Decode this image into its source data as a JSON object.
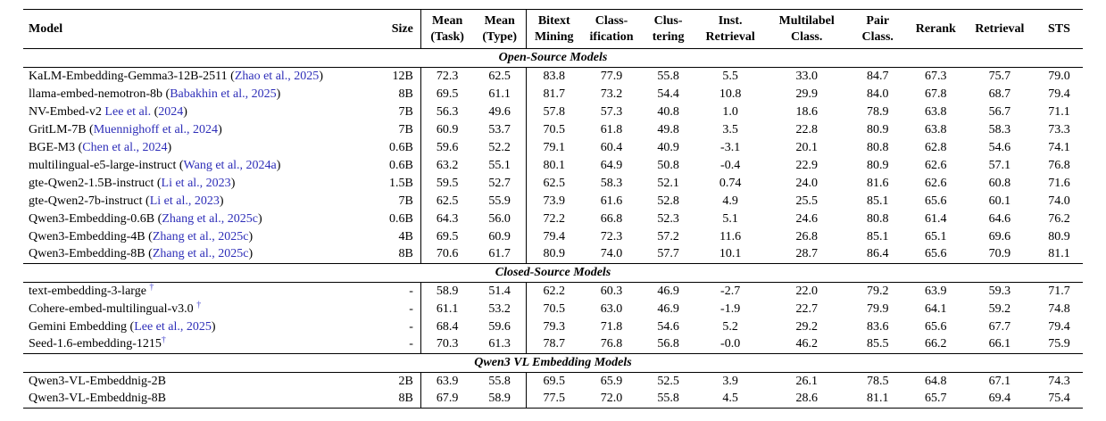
{
  "meta": {
    "citation_color": "#2e2eb8",
    "dagger_color": "#4444cc",
    "text_color": "#000000"
  },
  "table": {
    "columns": [
      {
        "key": "model",
        "lines": [
          "Model"
        ],
        "align": "left",
        "sep": false
      },
      {
        "key": "size",
        "lines": [
          "Size"
        ],
        "align": "right",
        "sep": true
      },
      {
        "key": "mean_task",
        "lines": [
          "Mean",
          "(Task)"
        ],
        "align": "center",
        "sep": false
      },
      {
        "key": "mean_type",
        "lines": [
          "Mean",
          "(Type)"
        ],
        "align": "center",
        "sep": true
      },
      {
        "key": "bitext_mining",
        "lines": [
          "Bitext",
          "Mining"
        ],
        "align": "center",
        "sep": false
      },
      {
        "key": "classification",
        "lines": [
          "Class-",
          "ification"
        ],
        "align": "center",
        "sep": false
      },
      {
        "key": "clustering",
        "lines": [
          "Clus-",
          "tering"
        ],
        "align": "center",
        "sep": false
      },
      {
        "key": "inst_retrieval",
        "lines": [
          "Inst.",
          "Retrieval"
        ],
        "align": "center",
        "sep": false
      },
      {
        "key": "multilabel",
        "lines": [
          "Multilabel",
          "Class."
        ],
        "align": "center",
        "sep": false
      },
      {
        "key": "pair_class",
        "lines": [
          "Pair",
          "Class."
        ],
        "align": "center",
        "sep": false
      },
      {
        "key": "rerank",
        "lines": [
          "Rerank"
        ],
        "align": "center",
        "sep": false
      },
      {
        "key": "retrieval",
        "lines": [
          "Retrieval"
        ],
        "align": "center",
        "sep": false
      },
      {
        "key": "sts",
        "lines": [
          "STS"
        ],
        "align": "center",
        "sep": false
      }
    ],
    "sections": [
      {
        "title": "Open-Source Models",
        "rows": [
          {
            "model": [
              {
                "t": "KaLM-Embedding-Gemma3-12B-2511 (",
                "s": "plain"
              },
              {
                "t": "Zhao et al., 2025",
                "s": "cite"
              },
              {
                "t": ")",
                "s": "plain"
              }
            ],
            "size": "12B",
            "scores": [
              "72.3",
              "62.5",
              "83.8",
              "77.9",
              "55.8",
              "5.5",
              "33.0",
              "84.7",
              "67.3",
              "75.7",
              "79.0"
            ]
          },
          {
            "model": [
              {
                "t": "llama-embed-nemotron-8b (",
                "s": "plain"
              },
              {
                "t": "Babakhin et al., 2025",
                "s": "cite"
              },
              {
                "t": ")",
                "s": "plain"
              }
            ],
            "size": "8B",
            "scores": [
              "69.5",
              "61.1",
              "81.7",
              "73.2",
              "54.4",
              "10.8",
              "29.9",
              "84.0",
              "67.8",
              "68.7",
              "79.4"
            ]
          },
          {
            "model": [
              {
                "t": "NV-Embed-v2 ",
                "s": "plain"
              },
              {
                "t": "Lee et al.",
                "s": "cite"
              },
              {
                "t": " (",
                "s": "plain"
              },
              {
                "t": "2024",
                "s": "cite"
              },
              {
                "t": ")",
                "s": "plain"
              }
            ],
            "size": "7B",
            "scores": [
              "56.3",
              "49.6",
              "57.8",
              "57.3",
              "40.8",
              "1.0",
              "18.6",
              "78.9",
              "63.8",
              "56.7",
              "71.1"
            ]
          },
          {
            "model": [
              {
                "t": "GritLM-7B (",
                "s": "plain"
              },
              {
                "t": "Muennighoff et al., 2024",
                "s": "cite"
              },
              {
                "t": ")",
                "s": "plain"
              }
            ],
            "size": "7B",
            "scores": [
              "60.9",
              "53.7",
              "70.5",
              "61.8",
              "49.8",
              "3.5",
              "22.8",
              "80.9",
              "63.8",
              "58.3",
              "73.3"
            ]
          },
          {
            "model": [
              {
                "t": "BGE-M3 (",
                "s": "plain"
              },
              {
                "t": "Chen et al., 2024",
                "s": "cite"
              },
              {
                "t": ")",
                "s": "plain"
              }
            ],
            "size": "0.6B",
            "scores": [
              "59.6",
              "52.2",
              "79.1",
              "60.4",
              "40.9",
              "-3.1",
              "20.1",
              "80.8",
              "62.8",
              "54.6",
              "74.1"
            ]
          },
          {
            "model": [
              {
                "t": "multilingual-e5-large-instruct (",
                "s": "plain"
              },
              {
                "t": "Wang et al., 2024a",
                "s": "cite"
              },
              {
                "t": ")",
                "s": "plain"
              }
            ],
            "size": "0.6B",
            "scores": [
              "63.2",
              "55.1",
              "80.1",
              "64.9",
              "50.8",
              "-0.4",
              "22.9",
              "80.9",
              "62.6",
              "57.1",
              "76.8"
            ]
          },
          {
            "model": [
              {
                "t": "gte-Qwen2-1.5B-instruct (",
                "s": "plain"
              },
              {
                "t": "Li et al., 2023",
                "s": "cite"
              },
              {
                "t": ")",
                "s": "plain"
              }
            ],
            "size": "1.5B",
            "scores": [
              "59.5",
              "52.7",
              "62.5",
              "58.3",
              "52.1",
              "0.74",
              "24.0",
              "81.6",
              "62.6",
              "60.8",
              "71.6"
            ]
          },
          {
            "model": [
              {
                "t": "gte-Qwen2-7b-instruct (",
                "s": "plain"
              },
              {
                "t": "Li et al., 2023",
                "s": "cite"
              },
              {
                "t": ")",
                "s": "plain"
              }
            ],
            "size": "7B",
            "scores": [
              "62.5",
              "55.9",
              "73.9",
              "61.6",
              "52.8",
              "4.9",
              "25.5",
              "85.1",
              "65.6",
              "60.1",
              "74.0"
            ]
          },
          {
            "model": [
              {
                "t": "Qwen3-Embedding-0.6B (",
                "s": "plain"
              },
              {
                "t": "Zhang et al., 2025c",
                "s": "cite"
              },
              {
                "t": ")",
                "s": "plain"
              }
            ],
            "size": "0.6B",
            "scores": [
              "64.3",
              "56.0",
              "72.2",
              "66.8",
              "52.3",
              "5.1",
              "24.6",
              "80.8",
              "61.4",
              "64.6",
              "76.2"
            ]
          },
          {
            "model": [
              {
                "t": "Qwen3-Embedding-4B (",
                "s": "plain"
              },
              {
                "t": "Zhang et al., 2025c",
                "s": "cite"
              },
              {
                "t": ")",
                "s": "plain"
              }
            ],
            "size": "4B",
            "scores": [
              "69.5",
              "60.9",
              "79.4",
              "72.3",
              "57.2",
              "11.6",
              "26.8",
              "85.1",
              "65.1",
              "69.6",
              "80.9"
            ]
          },
          {
            "model": [
              {
                "t": "Qwen3-Embedding-8B (",
                "s": "plain"
              },
              {
                "t": "Zhang et al., 2025c",
                "s": "cite"
              },
              {
                "t": ")",
                "s": "plain"
              }
            ],
            "size": "8B",
            "scores": [
              "70.6",
              "61.7",
              "80.9",
              "74.0",
              "57.7",
              "10.1",
              "28.7",
              "86.4",
              "65.6",
              "70.9",
              "81.1"
            ]
          }
        ]
      },
      {
        "title": "Closed-Source Models",
        "rows": [
          {
            "model": [
              {
                "t": "text-embedding-3-large ",
                "s": "plain"
              },
              {
                "t": "†",
                "s": "dagger"
              }
            ],
            "size": "-",
            "scores": [
              "58.9",
              "51.4",
              "62.2",
              "60.3",
              "46.9",
              "-2.7",
              "22.0",
              "79.2",
              "63.9",
              "59.3",
              "71.7"
            ]
          },
          {
            "model": [
              {
                "t": "Cohere-embed-multilingual-v3.0 ",
                "s": "plain"
              },
              {
                "t": "†",
                "s": "dagger"
              }
            ],
            "size": "-",
            "scores": [
              "61.1",
              "53.2",
              "70.5",
              "63.0",
              "46.9",
              "-1.9",
              "22.7",
              "79.9",
              "64.1",
              "59.2",
              "74.8"
            ]
          },
          {
            "model": [
              {
                "t": "Gemini Embedding (",
                "s": "plain"
              },
              {
                "t": "Lee et al., 2025",
                "s": "cite"
              },
              {
                "t": ")",
                "s": "plain"
              }
            ],
            "size": "-",
            "scores": [
              "68.4",
              "59.6",
              "79.3",
              "71.8",
              "54.6",
              "5.2",
              "29.2",
              "83.6",
              "65.6",
              "67.7",
              "79.4"
            ]
          },
          {
            "model": [
              {
                "t": "Seed-1.6-embedding-1215",
                "s": "plain"
              },
              {
                "t": "†",
                "s": "dagger"
              }
            ],
            "size": "-",
            "scores": [
              "70.3",
              "61.3",
              "78.7",
              "76.8",
              "56.8",
              "-0.0",
              "46.2",
              "85.5",
              "66.2",
              "66.1",
              "75.9"
            ]
          }
        ]
      },
      {
        "title": "Qwen3 VL Embedding Models",
        "rows": [
          {
            "model": [
              {
                "t": "Qwen3-VL-Embeddnig-2B",
                "s": "plain"
              }
            ],
            "size": "2B",
            "scores": [
              "63.9",
              "55.8",
              "69.5",
              "65.9",
              "52.5",
              "3.9",
              "26.1",
              "78.5",
              "64.8",
              "67.1",
              "74.3"
            ]
          },
          {
            "model": [
              {
                "t": "Qwen3-VL-Embeddnig-8B",
                "s": "plain"
              }
            ],
            "size": "8B",
            "scores": [
              "67.9",
              "58.9",
              "77.5",
              "72.0",
              "55.8",
              "4.5",
              "28.6",
              "81.1",
              "65.7",
              "69.4",
              "75.4"
            ]
          }
        ]
      }
    ]
  }
}
